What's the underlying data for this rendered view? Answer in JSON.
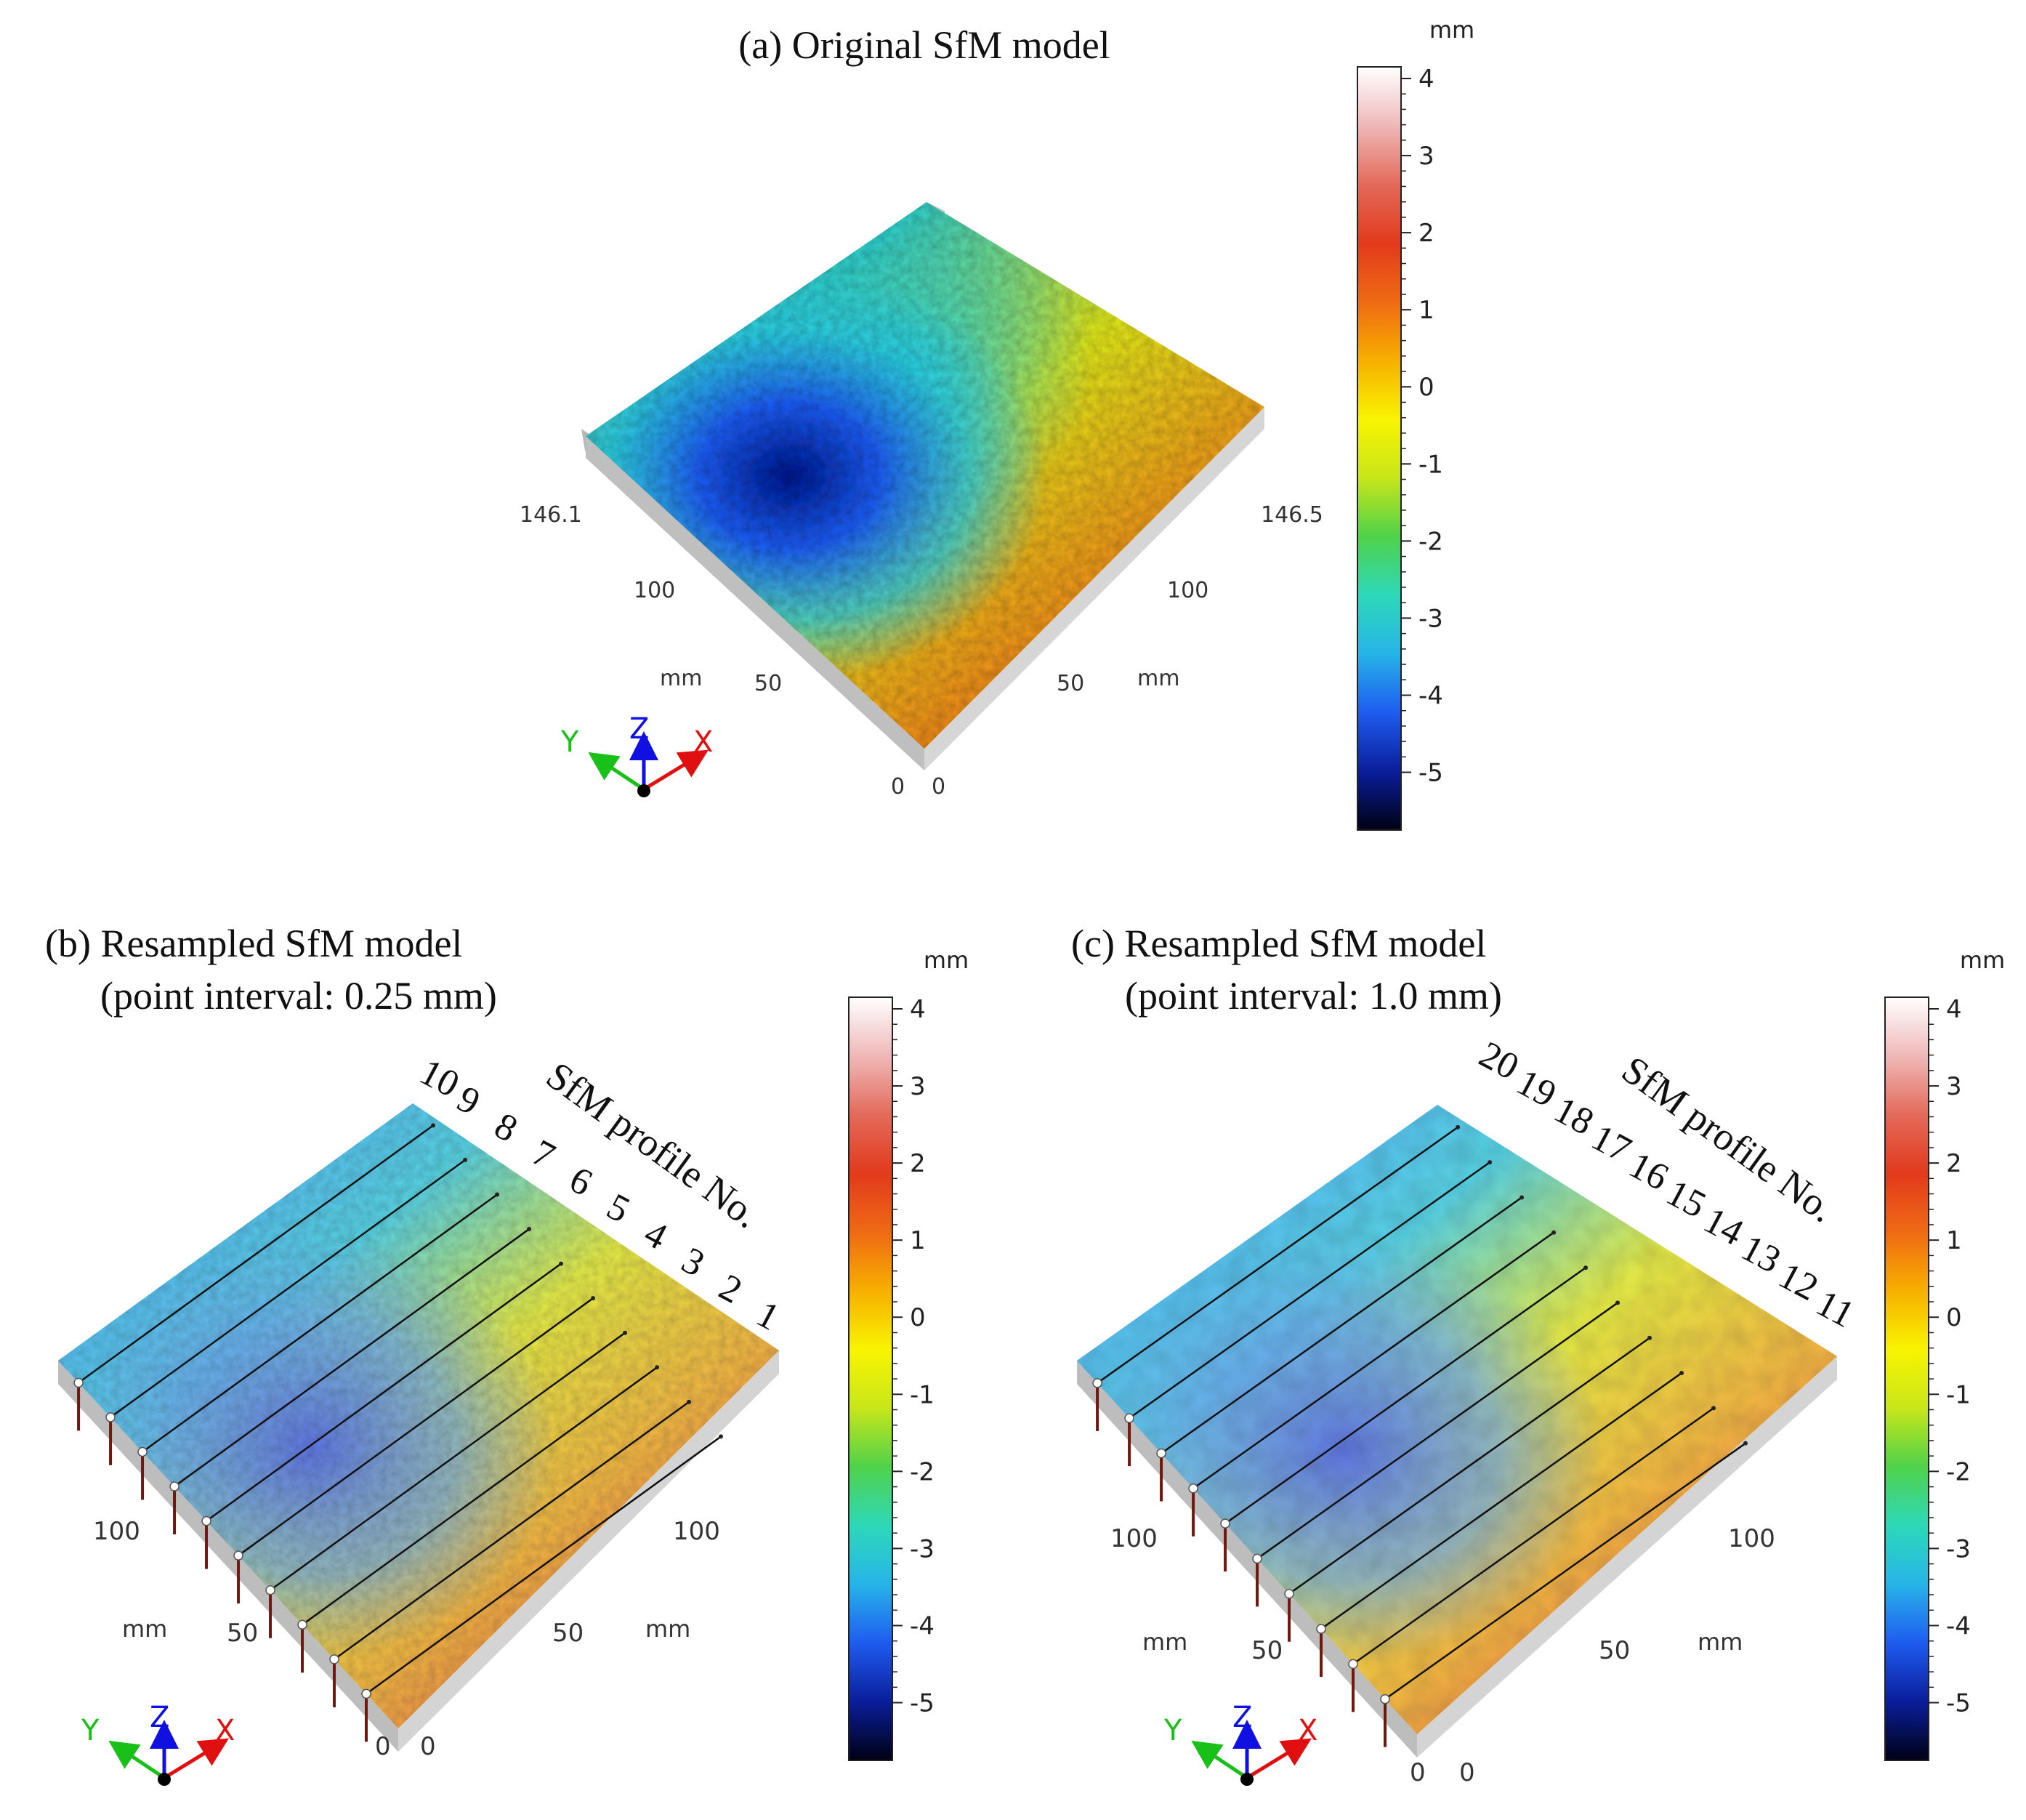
{
  "colorbar_stops": [
    "#000014",
    "#0a1e9a",
    "#1f5cf0",
    "#27b4e8",
    "#2dd9b8",
    "#50d24a",
    "#c8e61a",
    "#f8f400",
    "#f7b000",
    "#ef6a14",
    "#e23a1c",
    "#e36a5a",
    "#efb8b8",
    "#ffffff"
  ],
  "axis_colors": {
    "x": "#e01010",
    "y": "#18c018",
    "z": "#1010e0",
    "origin": "#000000"
  },
  "panels": {
    "a": {
      "title": "(a) Original SfM model",
      "unit": "mm",
      "ticks": [
        "4",
        "3",
        "2",
        "1",
        "0",
        "-1",
        "-2",
        "-3",
        "-4",
        "-5"
      ],
      "dim_left": "146.1",
      "dim_right": "146.5",
      "left_ticks": [
        "100",
        "50",
        "0"
      ],
      "right_ticks": [
        "100",
        "50",
        "0"
      ],
      "left_unit": "mm",
      "right_unit": "mm",
      "axes": {
        "x": "X",
        "y": "Y",
        "z": "Z"
      }
    },
    "b": {
      "title_line1": "(b) Resampled SfM model",
      "title_line2": "(point interval: 0.25 mm)",
      "unit": "mm",
      "ticks": [
        "4",
        "3",
        "2",
        "1",
        "0",
        "-1",
        "-2",
        "-3",
        "-4",
        "-5"
      ],
      "profile_label": "SfM profile No.",
      "profiles": [
        "10",
        "9",
        "8",
        "7",
        "6",
        "5",
        "4",
        "3",
        "2",
        "1"
      ],
      "left_ticks": [
        "100",
        "50",
        "0"
      ],
      "right_ticks": [
        "100",
        "50",
        "0"
      ],
      "left_unit": "mm",
      "right_unit": "mm",
      "axes": {
        "x": "X",
        "y": "Y",
        "z": "Z"
      }
    },
    "c": {
      "title_line1": "(c) Resampled SfM model",
      "title_line2": "(point interval: 1.0 mm)",
      "unit": "mm",
      "ticks": [
        "4",
        "3",
        "2",
        "1",
        "0",
        "-1",
        "-2",
        "-3",
        "-4",
        "-5"
      ],
      "profile_label": "SfM profile No.",
      "profiles": [
        "20",
        "19",
        "18",
        "17",
        "16",
        "15",
        "14",
        "13",
        "12",
        "11"
      ],
      "left_ticks": [
        "100",
        "50",
        "0"
      ],
      "right_ticks": [
        "100",
        "50",
        "0"
      ],
      "left_unit": "mm",
      "right_unit": "mm",
      "axes": {
        "x": "X",
        "y": "Y",
        "z": "Z"
      }
    }
  }
}
